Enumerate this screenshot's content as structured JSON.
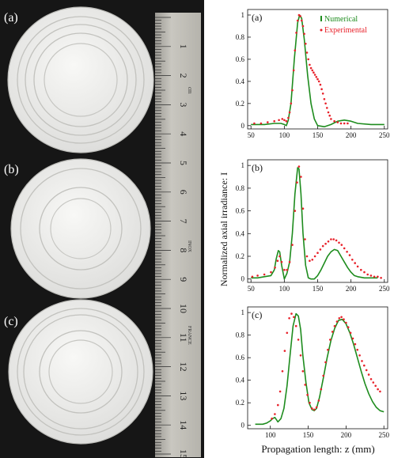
{
  "photo": {
    "panel_labels": [
      "(a)",
      "(b)",
      "(c)"
    ],
    "ruler_numbers": [
      "1",
      "2",
      "3",
      "4",
      "5",
      "6",
      "7",
      "8",
      "9",
      "10",
      "11",
      "12",
      "13",
      "14",
      "15"
    ],
    "ruler_stamps": [
      "cm",
      "INOX",
      "FRANCE"
    ]
  },
  "figure": {
    "ylabel": "Normalized axial irradiance: I",
    "xlabel": "Propagation length: z (mm)"
  },
  "colors": {
    "numerical": "#1e8c1e",
    "experimental": "#e8212a"
  },
  "chart_data": [
    {
      "type": "line",
      "panel_label": "(a)",
      "legend": [
        "Numerical",
        "Experimental"
      ],
      "legend_position": "top-right",
      "xlim": [
        45,
        255
      ],
      "ylim": [
        -0.03,
        1.05
      ],
      "xticks": [
        50,
        100,
        150,
        200,
        250
      ],
      "yticks": [
        0,
        0.2,
        0.4,
        0.6,
        0.8,
        1
      ],
      "ytick_labels": [
        "0",
        "0.2",
        "0.4",
        "0.6",
        "0.8",
        "1"
      ],
      "series": [
        {
          "name": "Numerical",
          "style": "line",
          "x": [
            50,
            70,
            85,
            95,
            100,
            103,
            106,
            110,
            115,
            120,
            123,
            126,
            130,
            135,
            140,
            145,
            150,
            160,
            170,
            180,
            190,
            200,
            210,
            230,
            250
          ],
          "y": [
            0.01,
            0.01,
            0.02,
            0.02,
            0.01,
            0.0,
            0.05,
            0.2,
            0.6,
            0.93,
            1.0,
            0.97,
            0.78,
            0.45,
            0.2,
            0.06,
            0.0,
            -0.01,
            0.01,
            0.04,
            0.05,
            0.04,
            0.02,
            0.01,
            0.01
          ]
        },
        {
          "name": "Experimental",
          "style": "points",
          "x": [
            55,
            65,
            75,
            85,
            92,
            97,
            100,
            103,
            106,
            108,
            110,
            112,
            114,
            116,
            118,
            120,
            122,
            124,
            126,
            128,
            130,
            132,
            134,
            136,
            138,
            140,
            142,
            144,
            146,
            148,
            150,
            152,
            154,
            156,
            158,
            160,
            162,
            164,
            166,
            168,
            170,
            175,
            180,
            185,
            190,
            195
          ],
          "y": [
            0.02,
            0.02,
            0.03,
            0.04,
            0.05,
            0.06,
            0.05,
            0.04,
            0.07,
            0.12,
            0.2,
            0.32,
            0.5,
            0.68,
            0.84,
            0.95,
            1.0,
            0.99,
            0.95,
            0.9,
            0.83,
            0.74,
            0.66,
            0.6,
            0.55,
            0.52,
            0.5,
            0.48,
            0.46,
            0.44,
            0.42,
            0.4,
            0.37,
            0.33,
            0.29,
            0.24,
            0.2,
            0.16,
            0.12,
            0.09,
            0.06,
            0.04,
            0.03,
            0.02,
            0.02,
            0.02
          ]
        }
      ]
    },
    {
      "type": "line",
      "panel_label": "(b)",
      "xlim": [
        45,
        255
      ],
      "ylim": [
        -0.03,
        1.05
      ],
      "xticks": [
        50,
        100,
        150,
        200,
        250
      ],
      "yticks": [
        0,
        0.2,
        0.4,
        0.6,
        0.8,
        1
      ],
      "ytick_labels": [
        "0",
        "0.2",
        "0.4",
        "0.6",
        "0.8",
        "1"
      ],
      "series": [
        {
          "name": "Numerical",
          "style": "line",
          "x": [
            50,
            60,
            70,
            80,
            85,
            88,
            91,
            93,
            96,
            100,
            104,
            108,
            112,
            116,
            120,
            122,
            125,
            128,
            132,
            136,
            140,
            145,
            150,
            155,
            160,
            165,
            170,
            175,
            180,
            185,
            190,
            195,
            200,
            205,
            210,
            220,
            230,
            240
          ],
          "y": [
            0.01,
            0.01,
            0.02,
            0.03,
            0.08,
            0.18,
            0.25,
            0.24,
            0.12,
            0.0,
            0.05,
            0.15,
            0.4,
            0.75,
            0.98,
            0.97,
            0.75,
            0.4,
            0.12,
            0.01,
            0.0,
            0.0,
            0.03,
            0.08,
            0.14,
            0.2,
            0.24,
            0.26,
            0.25,
            0.2,
            0.15,
            0.1,
            0.06,
            0.03,
            0.02,
            0.01,
            0.01,
            0.01
          ]
        },
        {
          "name": "Experimental",
          "style": "points",
          "x": [
            52,
            60,
            70,
            80,
            86,
            90,
            93,
            96,
            100,
            104,
            108,
            112,
            116,
            119,
            122,
            125,
            128,
            131,
            134,
            138,
            142,
            146,
            150,
            154,
            158,
            162,
            166,
            170,
            174,
            178,
            182,
            186,
            190,
            194,
            198,
            202,
            206,
            210,
            215,
            220,
            225,
            230,
            235,
            240,
            245
          ],
          "y": [
            0.02,
            0.03,
            0.04,
            0.06,
            0.1,
            0.16,
            0.2,
            0.15,
            0.08,
            0.08,
            0.15,
            0.3,
            0.6,
            0.85,
            0.99,
            0.9,
            0.62,
            0.35,
            0.2,
            0.16,
            0.17,
            0.2,
            0.23,
            0.26,
            0.29,
            0.31,
            0.33,
            0.35,
            0.35,
            0.34,
            0.32,
            0.3,
            0.27,
            0.24,
            0.21,
            0.17,
            0.14,
            0.11,
            0.08,
            0.06,
            0.04,
            0.03,
            0.02,
            0.02,
            0.01
          ]
        }
      ]
    },
    {
      "type": "line",
      "panel_label": "(c)",
      "xlim": [
        70,
        255
      ],
      "ylim": [
        -0.03,
        1.05
      ],
      "xticks": [
        100,
        150,
        200,
        250
      ],
      "yticks": [
        0,
        0.2,
        0.4,
        0.6,
        0.8,
        1
      ],
      "ytick_labels": [
        "0",
        "0.2",
        "0.4",
        "0.6",
        "0.8",
        "1"
      ],
      "series": [
        {
          "name": "Numerical",
          "style": "line",
          "x": [
            80,
            90,
            95,
            100,
            103,
            106,
            108,
            110,
            114,
            118,
            122,
            126,
            130,
            134,
            137,
            140,
            143,
            147,
            151,
            155,
            158,
            161,
            165,
            170,
            175,
            180,
            185,
            190,
            195,
            200,
            205,
            210,
            215,
            220,
            225,
            230,
            235,
            240,
            245,
            250
          ],
          "y": [
            0.01,
            0.01,
            0.02,
            0.04,
            0.06,
            0.07,
            0.05,
            0.03,
            0.06,
            0.15,
            0.35,
            0.62,
            0.88,
            0.99,
            0.97,
            0.85,
            0.62,
            0.38,
            0.2,
            0.14,
            0.13,
            0.15,
            0.25,
            0.42,
            0.6,
            0.75,
            0.86,
            0.93,
            0.94,
            0.9,
            0.82,
            0.72,
            0.6,
            0.48,
            0.37,
            0.28,
            0.21,
            0.16,
            0.13,
            0.12
          ]
        },
        {
          "name": "Experimental",
          "style": "points",
          "x": [
            102,
            106,
            110,
            113,
            116,
            119,
            122,
            125,
            128,
            131,
            134,
            137,
            140,
            143,
            146,
            149,
            152,
            155,
            158,
            161,
            164,
            167,
            170,
            173,
            176,
            179,
            182,
            185,
            188,
            191,
            194,
            197,
            200,
            203,
            206,
            209,
            212,
            215,
            218,
            221,
            224,
            227,
            230,
            233,
            236,
            239,
            242,
            245
          ],
          "y": [
            0.06,
            0.1,
            0.18,
            0.3,
            0.48,
            0.66,
            0.82,
            0.95,
            0.99,
            0.96,
            0.88,
            0.76,
            0.62,
            0.48,
            0.36,
            0.27,
            0.2,
            0.15,
            0.14,
            0.16,
            0.22,
            0.32,
            0.44,
            0.56,
            0.67,
            0.76,
            0.83,
            0.88,
            0.92,
            0.95,
            0.96,
            0.94,
            0.91,
            0.87,
            0.82,
            0.77,
            0.72,
            0.67,
            0.62,
            0.57,
            0.53,
            0.49,
            0.45,
            0.41,
            0.38,
            0.35,
            0.32,
            0.3
          ]
        }
      ]
    }
  ]
}
